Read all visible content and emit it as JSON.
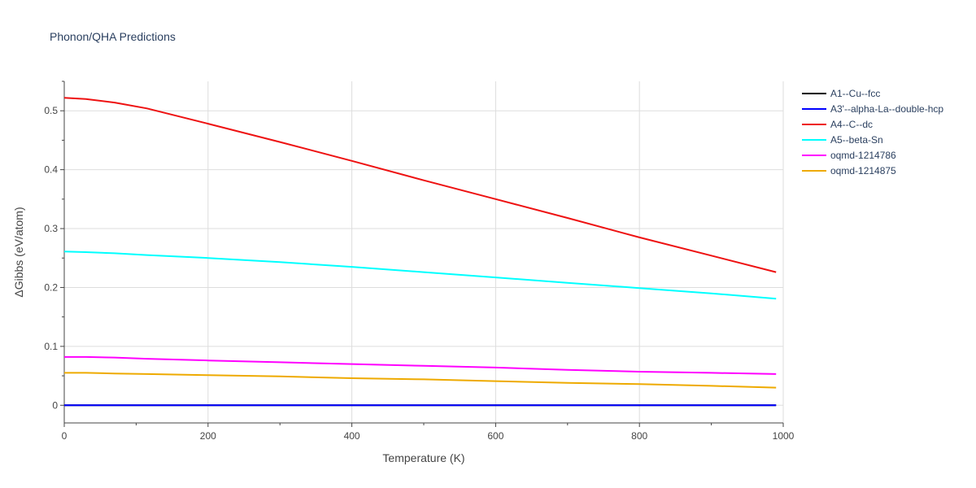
{
  "chart_data": {
    "type": "line",
    "title": "Phonon/QHA Predictions",
    "xlabel": "Temperature (K)",
    "ylabel": "ΔGibbs (eV/atom)",
    "xlim": [
      0,
      1000
    ],
    "ylim": [
      -0.03,
      0.55
    ],
    "xticks": [
      0,
      200,
      400,
      600,
      800,
      1000
    ],
    "yticks": [
      0,
      0.1,
      0.2,
      0.3,
      0.4,
      0.5
    ],
    "xtick_labels": [
      "0",
      "200",
      "400",
      "600",
      "800",
      "1000"
    ],
    "ytick_labels": [
      "0",
      "0.1",
      "0.2",
      "0.3",
      "0.4",
      "0.5"
    ],
    "grid": true,
    "legend_position": "top-right",
    "x": [
      0,
      30,
      70,
      115,
      200,
      300,
      400,
      500,
      600,
      700,
      800,
      900,
      990
    ],
    "series": [
      {
        "name": "A1--Cu--fcc",
        "color": "#000000",
        "values": [
          0,
          0,
          0,
          0,
          0,
          0,
          0,
          0,
          0,
          0,
          0,
          0,
          0
        ]
      },
      {
        "name": "A3'--alpha-La--double-hcp",
        "color": "#0000ff",
        "values": [
          0,
          0,
          0,
          0,
          0,
          0,
          0,
          0,
          0,
          0,
          0,
          0,
          0
        ]
      },
      {
        "name": "A4--C--dc",
        "color": "#ee1111",
        "values": [
          0.522,
          0.52,
          0.514,
          0.504,
          0.478,
          0.447,
          0.415,
          0.382,
          0.35,
          0.318,
          0.285,
          0.254,
          0.226
        ]
      },
      {
        "name": "A5--beta-Sn",
        "color": "#00ffff",
        "values": [
          0.261,
          0.26,
          0.258,
          0.255,
          0.25,
          0.243,
          0.235,
          0.226,
          0.217,
          0.208,
          0.199,
          0.19,
          0.181
        ]
      },
      {
        "name": "oqmd-1214786",
        "color": "#ff00ff",
        "values": [
          0.082,
          0.082,
          0.081,
          0.079,
          0.076,
          0.073,
          0.07,
          0.067,
          0.064,
          0.06,
          0.057,
          0.055,
          0.053
        ]
      },
      {
        "name": "oqmd-1214875",
        "color": "#eeaa00",
        "values": [
          0.055,
          0.055,
          0.054,
          0.053,
          0.051,
          0.049,
          0.046,
          0.044,
          0.041,
          0.038,
          0.036,
          0.033,
          0.03
        ]
      }
    ]
  }
}
